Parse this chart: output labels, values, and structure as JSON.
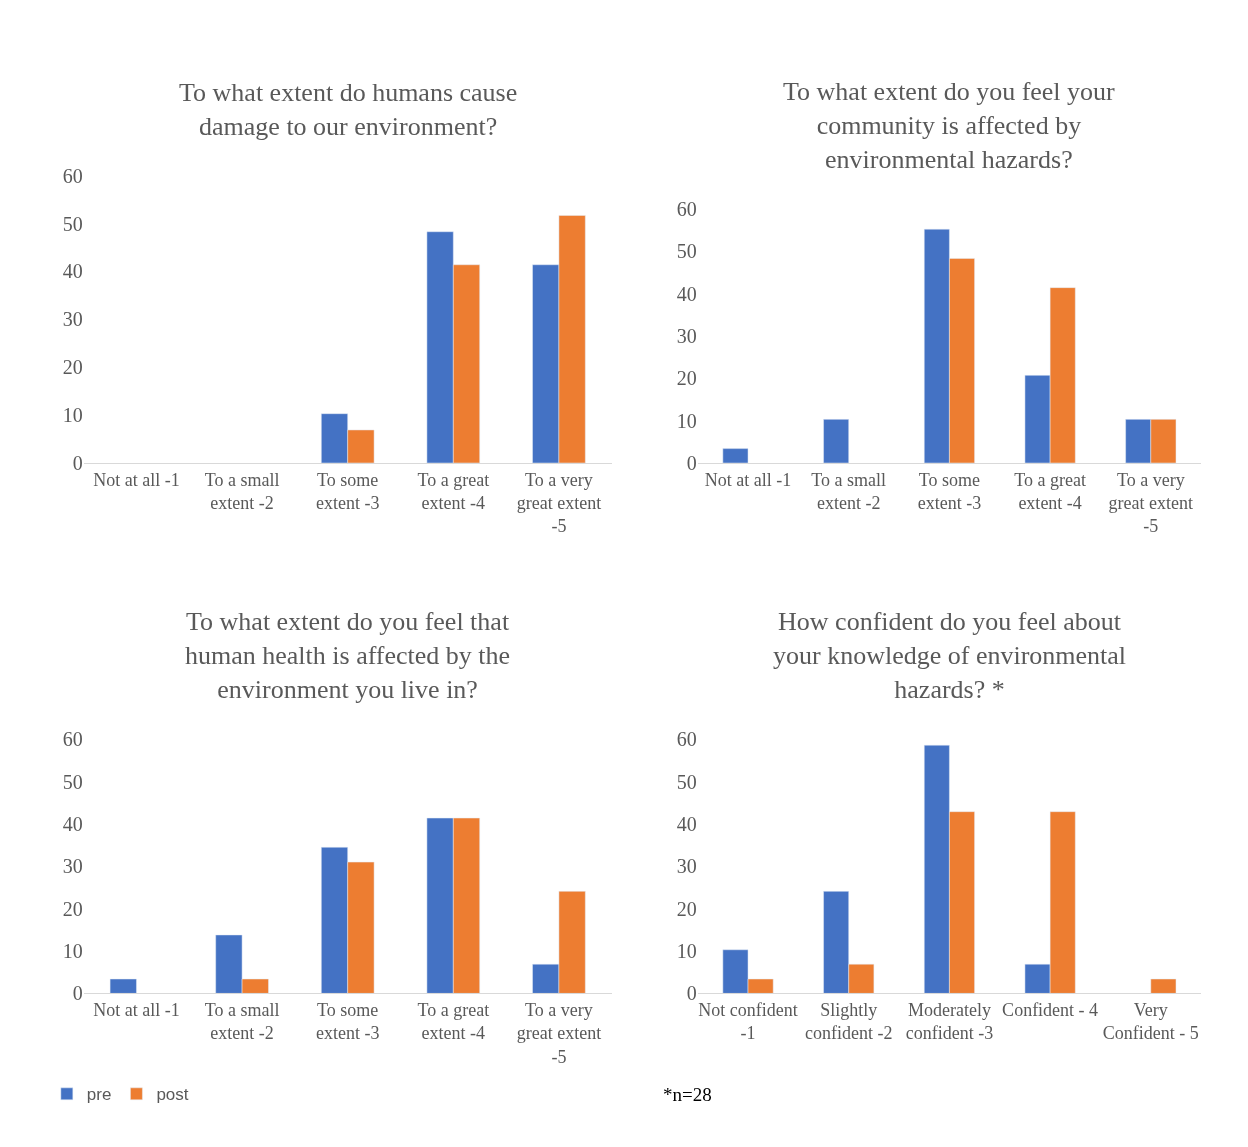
{
  "chart_data": [
    {
      "type": "bar",
      "title": "To what extent do humans cause damage to our environment?",
      "categories": [
        "Not at all -1",
        "To a small extent -2",
        "To some extent -3",
        "To a great extent -4",
        "To a very great extent -5"
      ],
      "series": [
        {
          "color": "#4472c4",
          "values": [
            null,
            null,
            10.3,
            48.3,
            41.4
          ]
        },
        {
          "color": "#ed7d31",
          "values": [
            null,
            null,
            6.9,
            41.4,
            51.7
          ]
        }
      ],
      "ylim": [
        0,
        60
      ],
      "yticks": [
        0,
        10,
        20,
        30,
        40,
        50,
        60
      ],
      "grid": false,
      "legend": false
    },
    {
      "type": "bar",
      "title": "To what extent do you feel your community is affected by environmental hazards?",
      "categories": [
        "Not at all -1",
        "To a small extent -2",
        "To some extent -3",
        "To a great extent -4",
        "To a very great extent -5"
      ],
      "series": [
        {
          "color": "#4472c4",
          "values": [
            3.4,
            10.3,
            55.2,
            20.7,
            10.3
          ]
        },
        {
          "color": "#ed7d31",
          "values": [
            null,
            null,
            48.3,
            41.4,
            10.3
          ]
        }
      ],
      "ylim": [
        0,
        60
      ],
      "yticks": [
        0,
        10,
        20,
        30,
        40,
        50,
        60
      ],
      "grid": false,
      "legend": false
    },
    {
      "type": "bar",
      "title": "To what extent do you feel that human health is affected by the environment you live in?",
      "categories": [
        "Not at all -1",
        "To a small extent -2",
        "To some extent -3",
        "To a great extent -4",
        "To a very great extent -5"
      ],
      "series": [
        {
          "name": "pre",
          "color": "#4472c4",
          "values": [
            3.4,
            13.8,
            34.5,
            41.4,
            6.9
          ]
        },
        {
          "name": "post",
          "color": "#ed7d31",
          "values": [
            null,
            3.4,
            31.0,
            41.4,
            24.1
          ]
        }
      ],
      "ylim": [
        0,
        60
      ],
      "yticks": [
        0,
        10,
        20,
        30,
        40,
        50,
        60
      ],
      "grid": false,
      "legend": "bottom left"
    },
    {
      "type": "bar",
      "title": "How confident do you feel about your knowledge of environmental hazards? *",
      "categories": [
        "Not confident -1",
        "Slightly confident -2",
        "Moderately confident -3",
        "Confident - 4",
        "Very Confident - 5"
      ],
      "series": [
        {
          "color": "#4472c4",
          "values": [
            10.3,
            24.1,
            58.6,
            6.9,
            null
          ]
        },
        {
          "color": "#ed7d31",
          "values": [
            3.4,
            6.9,
            42.9,
            42.9,
            3.4
          ]
        }
      ],
      "ylim": [
        0,
        60
      ],
      "yticks": [
        0,
        10,
        20,
        30,
        40,
        50,
        60
      ],
      "grid": false,
      "legend": false,
      "annotations": [
        "*n=28"
      ]
    }
  ]
}
